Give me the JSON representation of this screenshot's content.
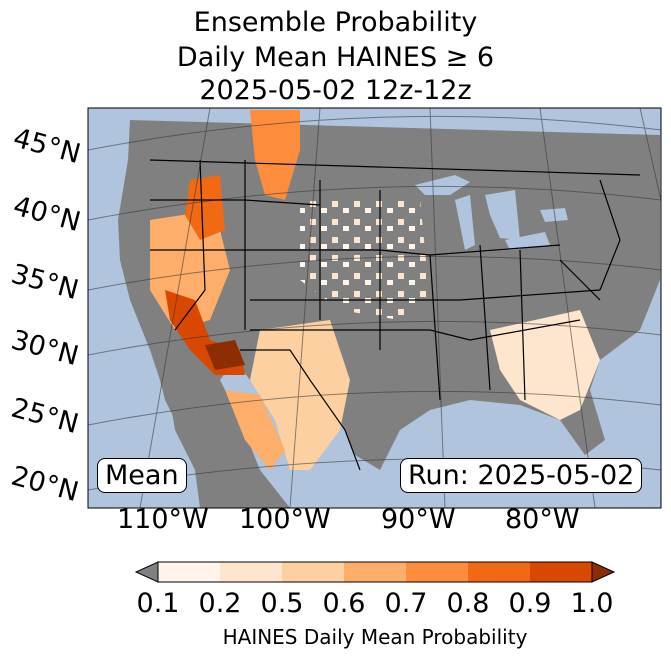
{
  "title_lines": [
    "Ensemble Probability",
    "Daily Mean HAINES ≥ 6",
    "2025-05-02 12z-12z"
  ],
  "lat_labels": [
    "45°N",
    "40°N",
    "35°N",
    "30°N",
    "25°N",
    "20°N"
  ],
  "lon_labels": [
    "110°W",
    "100°W",
    "90°W",
    "80°W"
  ],
  "stat_label": "Mean",
  "run_label": "Run: 2025-05-02",
  "colorbar": {
    "label": "HAINES Daily Mean Probability",
    "ticks": [
      "0.1",
      "0.2",
      "0.5",
      "0.6",
      "0.7",
      "0.8",
      "0.9",
      "1.0"
    ],
    "colors": [
      "#fff5eb",
      "#fee6ce",
      "#fdd0a2",
      "#fdae6b",
      "#fd8d3c",
      "#f16913",
      "#d94801"
    ],
    "under_color": "#808080",
    "over_color": "#8c2d04"
  },
  "colors": {
    "ocean": "#b0c4de",
    "land_below": "#808080",
    "border": "#000000"
  }
}
